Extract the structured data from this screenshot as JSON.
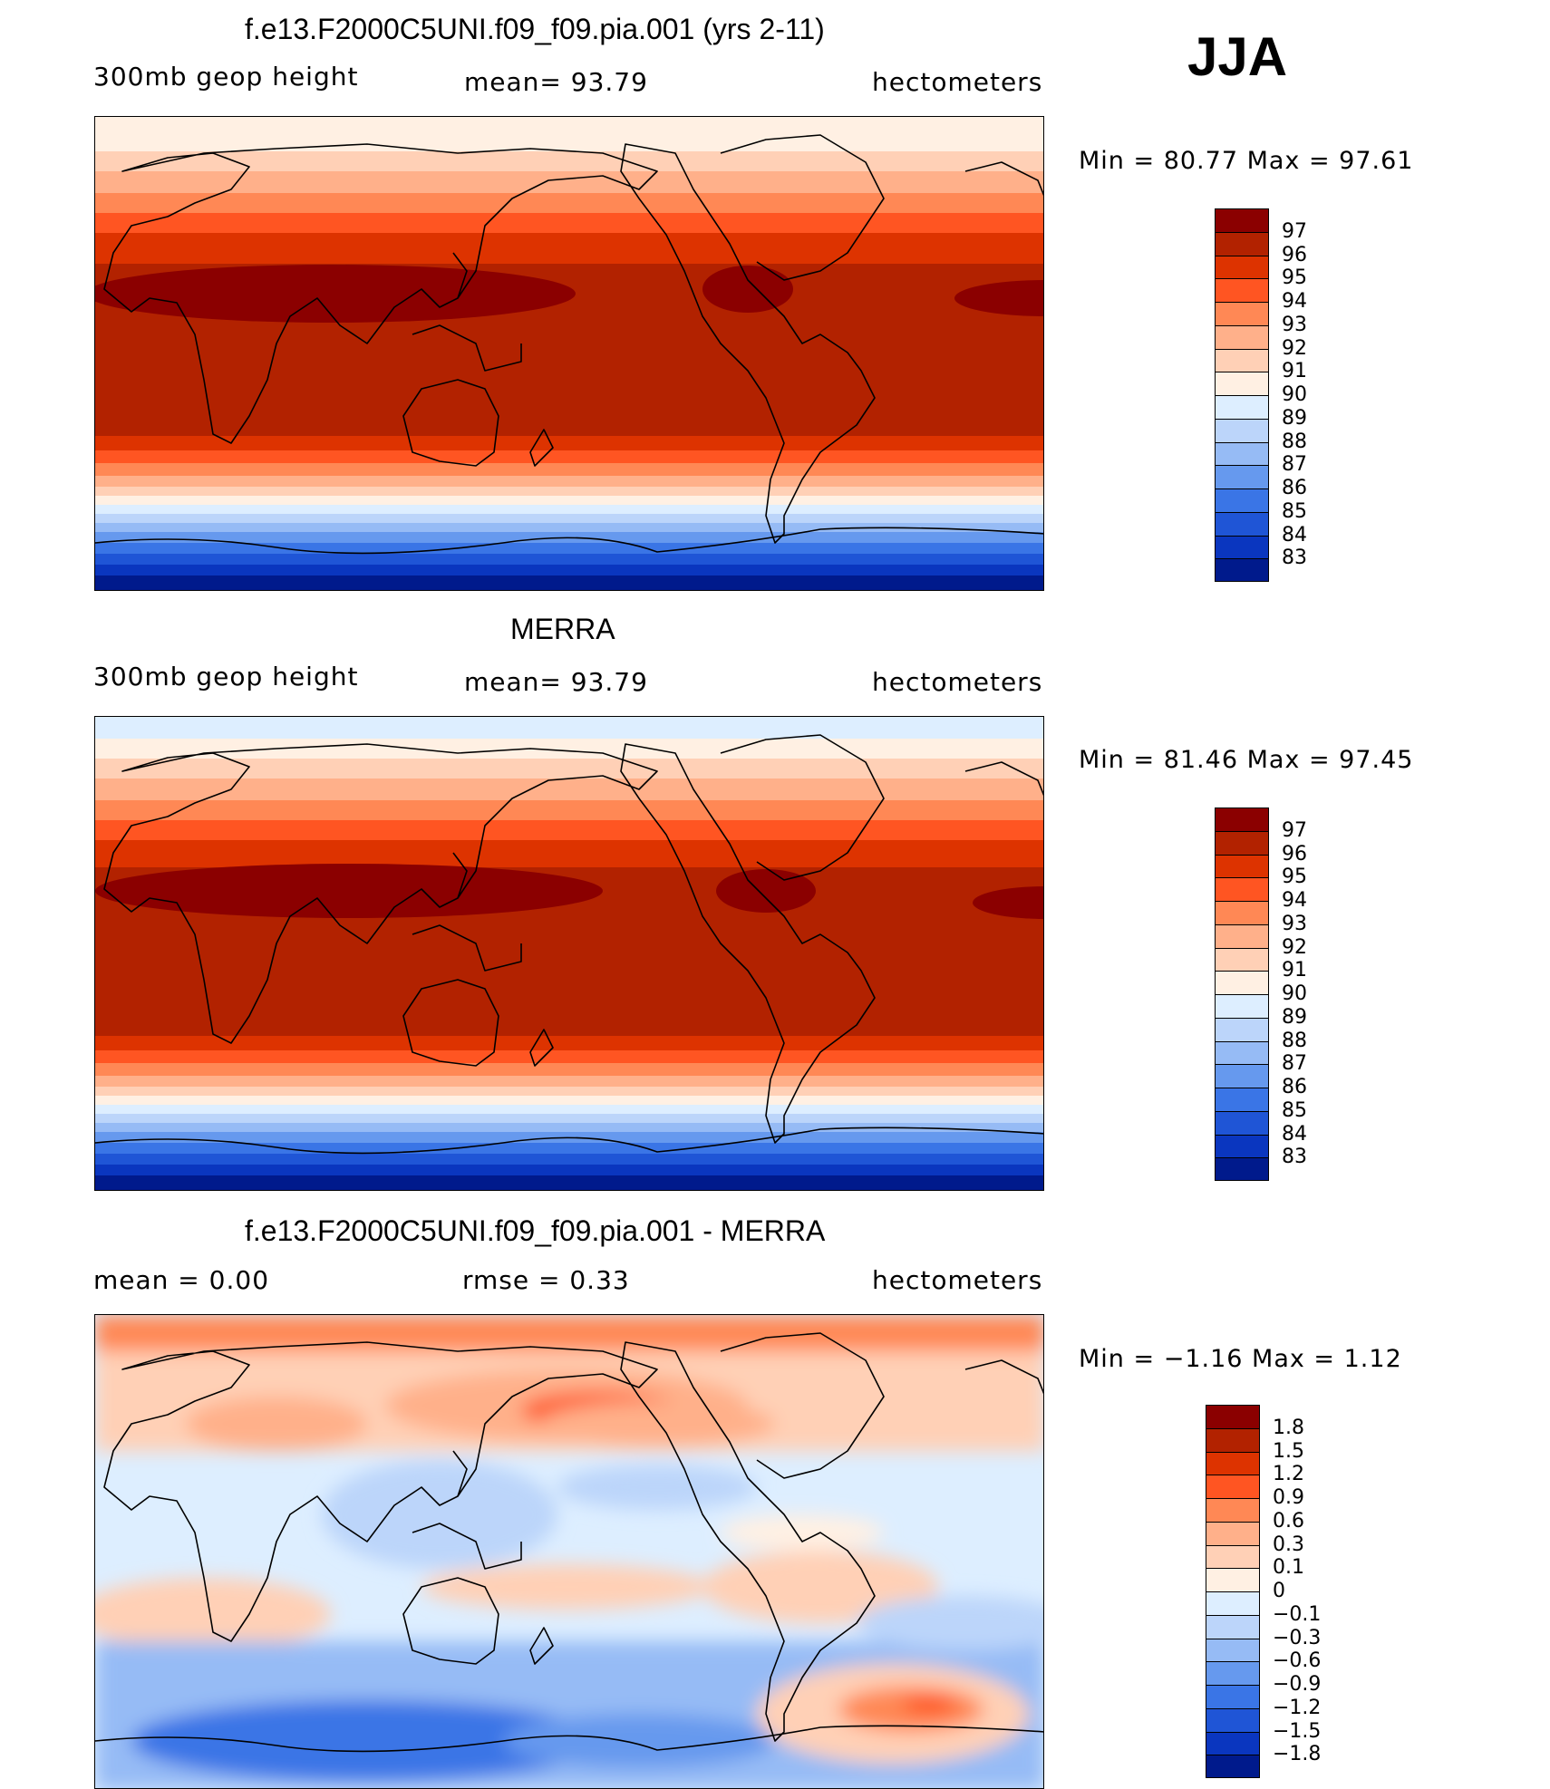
{
  "season": "JJA",
  "panels": [
    {
      "id": "model",
      "title": "f.e13.F2000C5UNI.f09_f09.pia.001 (yrs 2-11)",
      "left_label": "300mb  geop  height",
      "center_label": "mean=   93.79",
      "right_label": "hectometers",
      "minmax": "Min  =    80.77  Max  =    97.61",
      "colorbar_labels": [
        "97",
        "96",
        "95",
        "94",
        "93",
        "92",
        "91",
        "90",
        "89",
        "88",
        "87",
        "86",
        "85",
        "84",
        "83"
      ],
      "colorbar_colors": [
        "#8b0000",
        "#b22200",
        "#dd3300",
        "#ff5522",
        "#ff8855",
        "#ffb08a",
        "#ffd0b6",
        "#fff0e3",
        "#ddeeff",
        "#bcd5fa",
        "#96bbf5",
        "#6699ee",
        "#3a75e6",
        "#1f55d6",
        "#0a36bf",
        "#001a8c"
      ]
    },
    {
      "id": "obs",
      "title": "MERRA",
      "left_label": "300mb  geop  height",
      "center_label": "mean=   93.79",
      "right_label": "hectometers",
      "minmax": "Min  =    81.46  Max  =    97.45",
      "colorbar_labels": [
        "97",
        "96",
        "95",
        "94",
        "93",
        "92",
        "91",
        "90",
        "89",
        "88",
        "87",
        "86",
        "85",
        "84",
        "83"
      ],
      "colorbar_colors": [
        "#8b0000",
        "#b22200",
        "#dd3300",
        "#ff5522",
        "#ff8855",
        "#ffb08a",
        "#ffd0b6",
        "#fff0e3",
        "#ddeeff",
        "#bcd5fa",
        "#96bbf5",
        "#6699ee",
        "#3a75e6",
        "#1f55d6",
        "#0a36bf",
        "#001a8c"
      ]
    },
    {
      "id": "diff",
      "title": "f.e13.F2000C5UNI.f09_f09.pia.001 - MERRA",
      "left_label": "mean  =      0.00",
      "center_label": "rmse  =      0.33",
      "right_label": "hectometers",
      "minmax": "Min  =    −1.16  Max  =      1.12",
      "colorbar_labels": [
        "1.8",
        "1.5",
        "1.2",
        "0.9",
        "0.6",
        "0.3",
        "0.1",
        "0",
        "−0.1",
        "−0.3",
        "−0.6",
        "−0.9",
        "−1.2",
        "−1.5",
        "−1.8"
      ],
      "colorbar_colors": [
        "#8b0000",
        "#b22200",
        "#dd3300",
        "#ff5522",
        "#ff8855",
        "#ffb08a",
        "#ffd0b6",
        "#fff0e3",
        "#ddeeff",
        "#bcd5fa",
        "#96bbf5",
        "#6699ee",
        "#3a75e6",
        "#1f55d6",
        "#0a36bf",
        "#001a8c"
      ]
    }
  ]
}
